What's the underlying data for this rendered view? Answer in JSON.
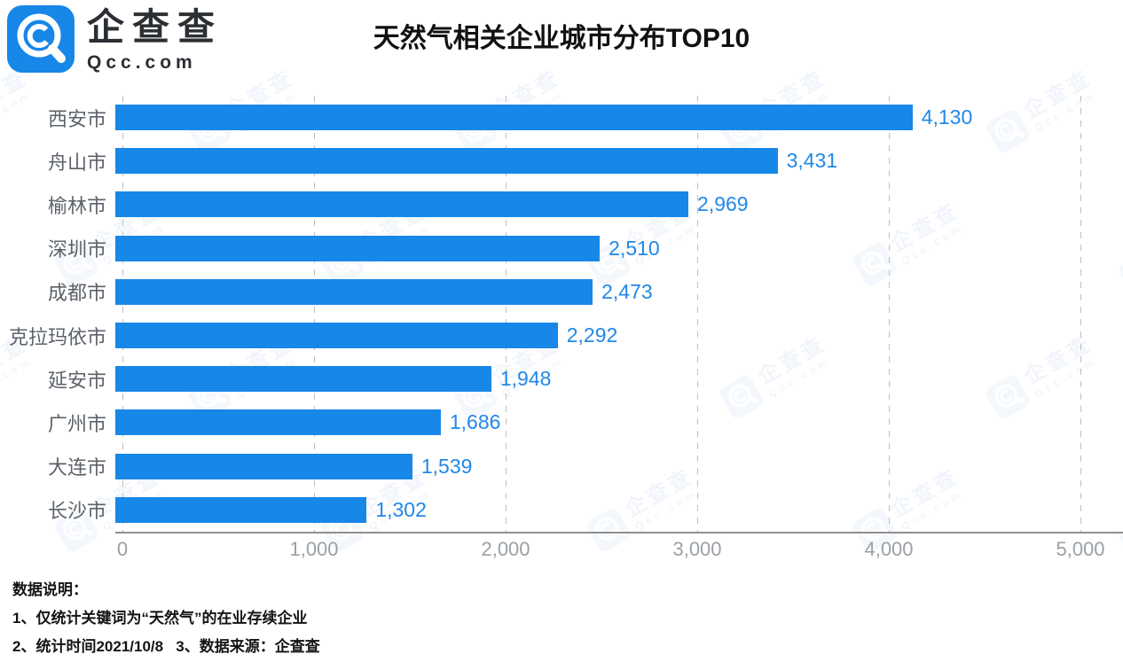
{
  "header": {
    "logo": {
      "cn": "企查查",
      "en": "Qcc.com"
    },
    "title": "天然气相关企业城市分布TOP10"
  },
  "chart_data": {
    "type": "bar",
    "orientation": "horizontal",
    "title": "天然气相关企业城市分布TOP10",
    "categories": [
      "西安市",
      "舟山市",
      "榆林市",
      "深圳市",
      "成都市",
      "克拉玛依市",
      "延安市",
      "广州市",
      "大连市",
      "长沙市"
    ],
    "values": [
      4130,
      3431,
      2969,
      2510,
      2473,
      2292,
      1948,
      1686,
      1539,
      1302
    ],
    "value_labels": [
      "4,130",
      "3,431",
      "2,969",
      "2,510",
      "2,473",
      "2,292",
      "1,948",
      "1,686",
      "1,539",
      "1,302"
    ],
    "x_ticks": [
      "0",
      "1,000",
      "2,000",
      "3,000",
      "4,000",
      "5,000"
    ],
    "xlim": [
      0,
      5000
    ],
    "grid": "vertical-dashed",
    "legend": "none",
    "bar_color": "#1787e8",
    "value_label_color": "#2188e8",
    "category_label_color": "#5c6269",
    "axis_label_color": "#9aa0a6"
  },
  "footer": {
    "heading": "数据说明：",
    "note1": "1、仅统计关键词为“天然气”的在业存续企业",
    "note2": "2、统计时间2021/10/8   3、数据来源：企查查"
  },
  "watermark": {
    "cn": "企查查",
    "en": "Qcc.com"
  }
}
